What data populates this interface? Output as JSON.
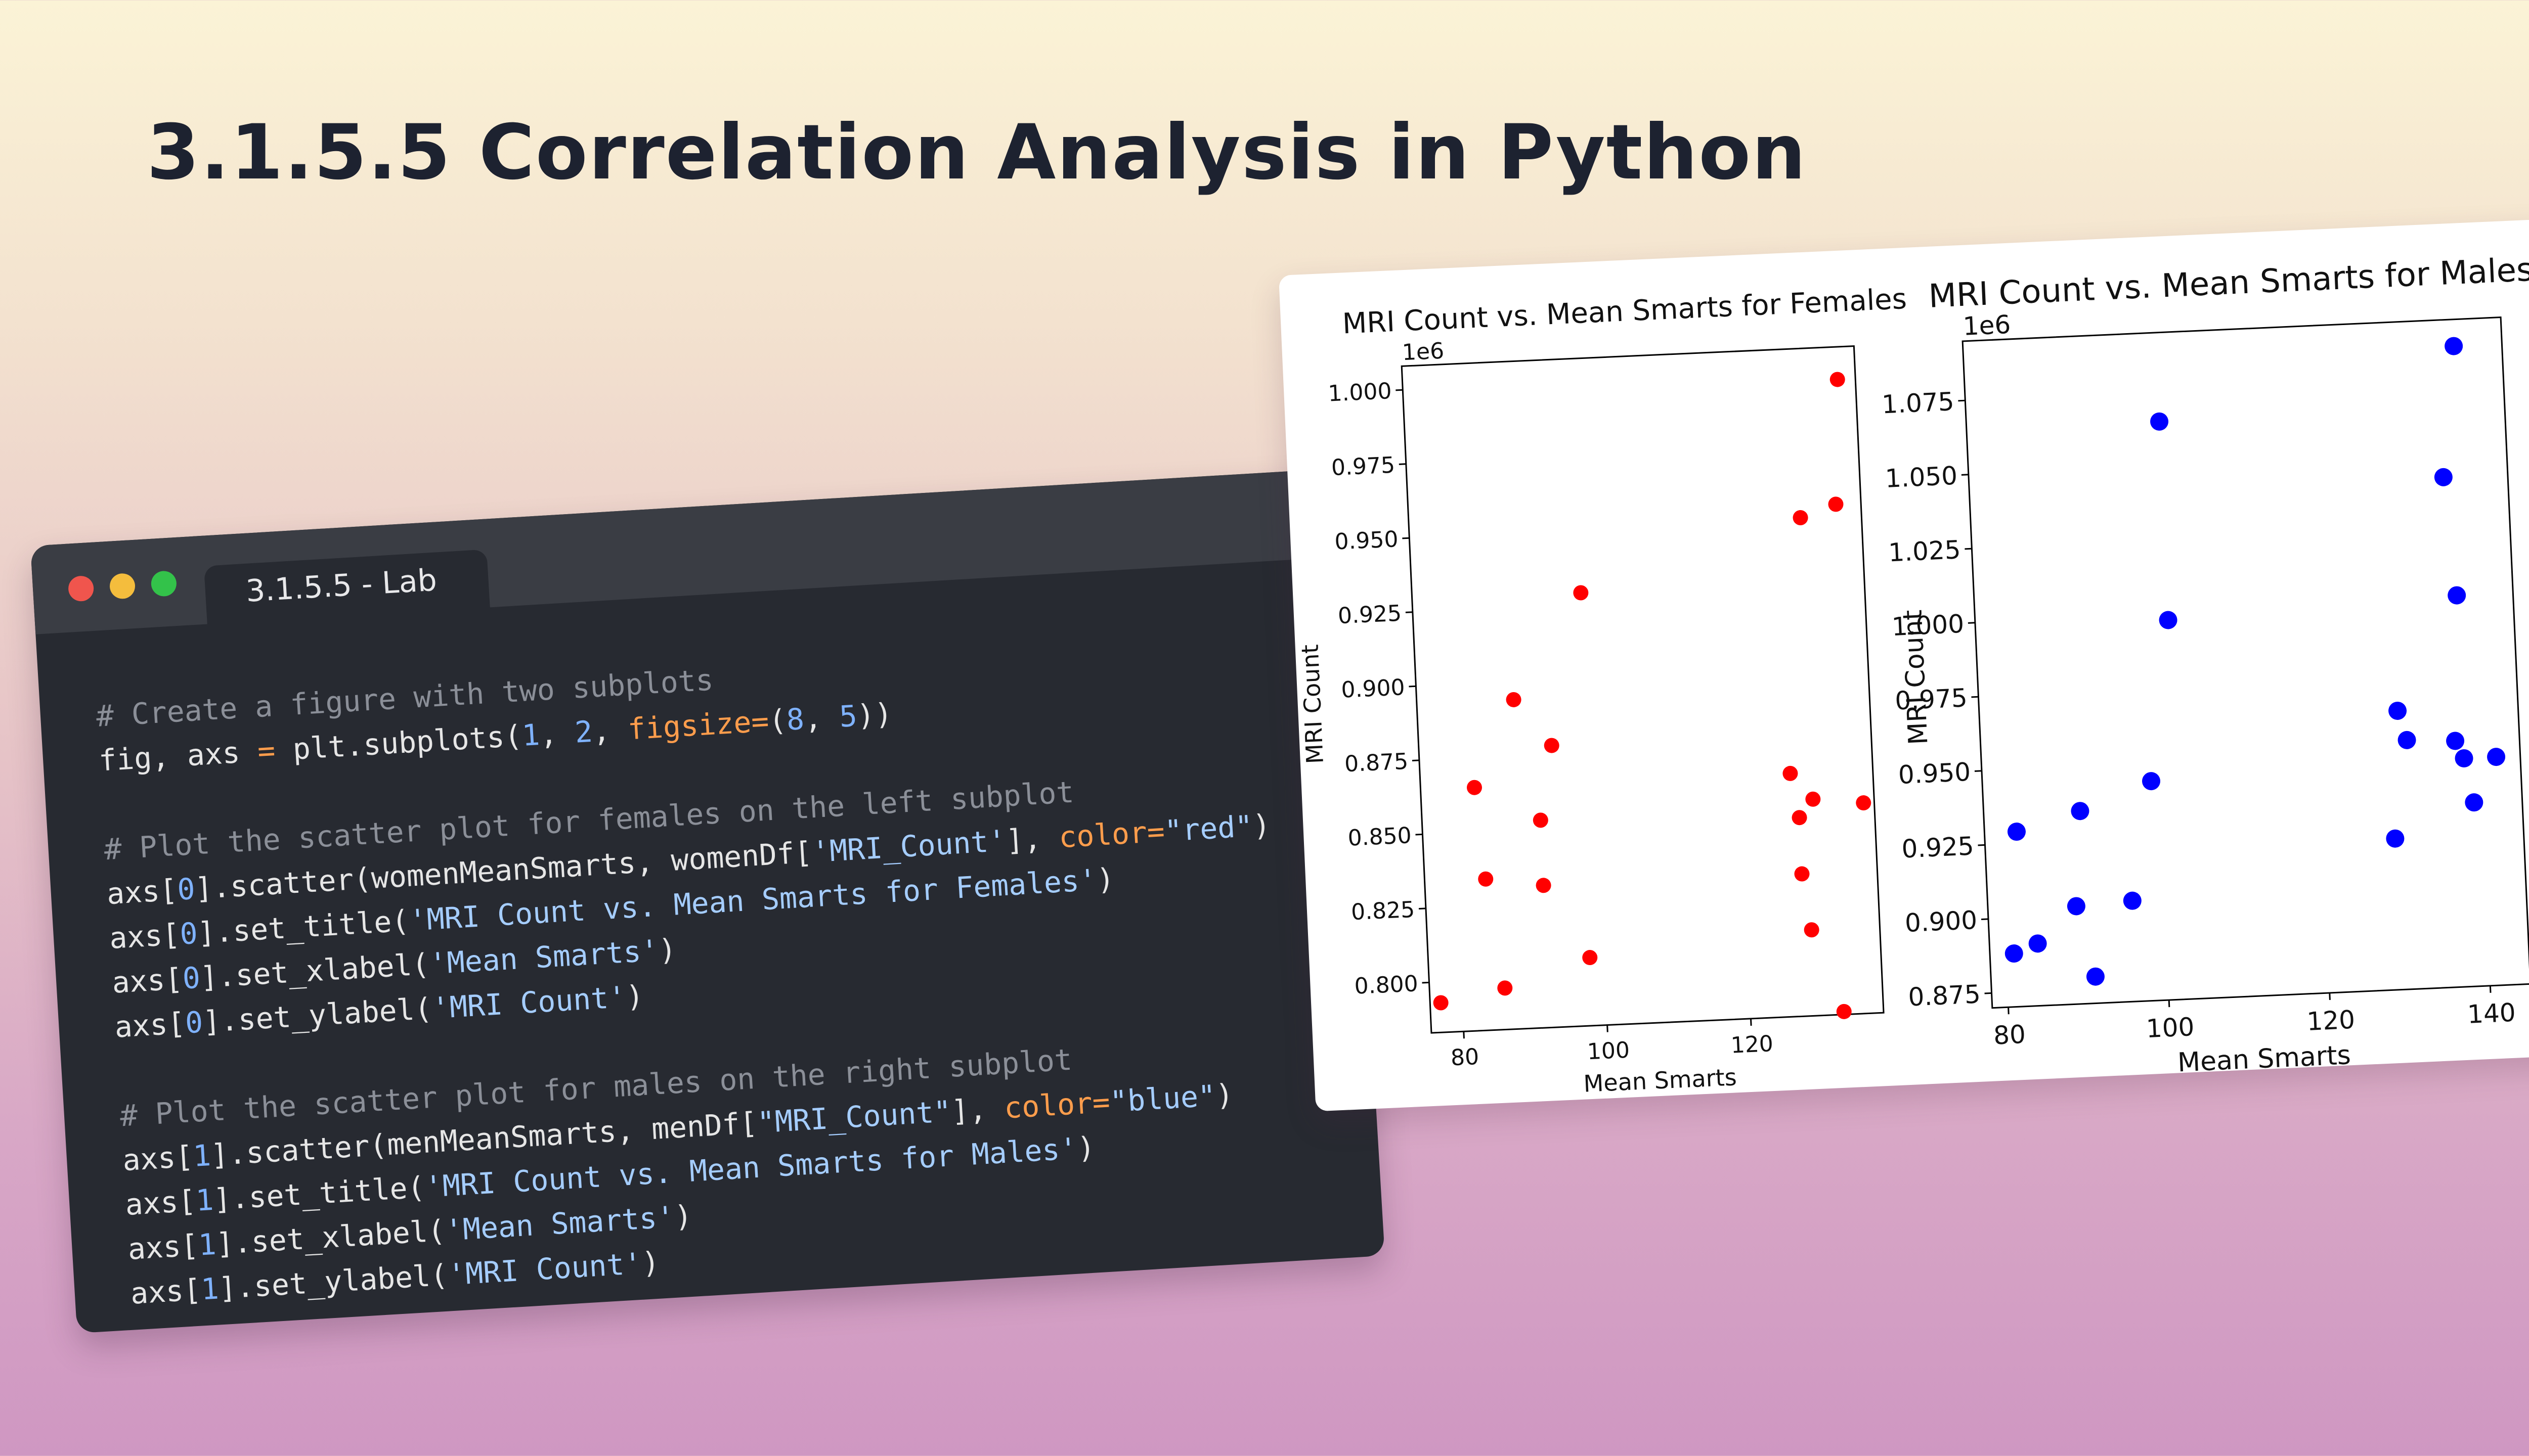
{
  "slide": {
    "title": "3.1.5.5 Correlation Analysis in Python"
  },
  "code_window": {
    "tab_label": "3.1.5.5 - Lab",
    "lines": [
      [
        {
          "t": "# Create a figure with two subplots",
          "c": "c"
        }
      ],
      [
        {
          "t": "fig, axs ",
          "c": "p"
        },
        {
          "t": "=",
          "c": "k"
        },
        {
          "t": " plt.subplots(",
          "c": "p"
        },
        {
          "t": "1",
          "c": "n"
        },
        {
          "t": ", ",
          "c": "p"
        },
        {
          "t": "2",
          "c": "n"
        },
        {
          "t": ", ",
          "c": "p"
        },
        {
          "t": "figsize=",
          "c": "k"
        },
        {
          "t": "(",
          "c": "p"
        },
        {
          "t": "8",
          "c": "n"
        },
        {
          "t": ", ",
          "c": "p"
        },
        {
          "t": "5",
          "c": "n"
        },
        {
          "t": "))",
          "c": "p"
        }
      ],
      [
        {
          "t": "",
          "c": "p"
        }
      ],
      [
        {
          "t": "# Plot the scatter plot for females on the left subplot",
          "c": "c"
        }
      ],
      [
        {
          "t": "axs[",
          "c": "p"
        },
        {
          "t": "0",
          "c": "n"
        },
        {
          "t": "].scatter(womenMeanSmarts, womenDf[",
          "c": "p"
        },
        {
          "t": "'MRI_Count'",
          "c": "s"
        },
        {
          "t": "], ",
          "c": "p"
        },
        {
          "t": "color=",
          "c": "k"
        },
        {
          "t": "\"red\"",
          "c": "s"
        },
        {
          "t": ")",
          "c": "p"
        }
      ],
      [
        {
          "t": "axs[",
          "c": "p"
        },
        {
          "t": "0",
          "c": "n"
        },
        {
          "t": "].set_title(",
          "c": "p"
        },
        {
          "t": "'MRI Count vs. Mean Smarts for Females'",
          "c": "s"
        },
        {
          "t": ")",
          "c": "p"
        }
      ],
      [
        {
          "t": "axs[",
          "c": "p"
        },
        {
          "t": "0",
          "c": "n"
        },
        {
          "t": "].set_xlabel(",
          "c": "p"
        },
        {
          "t": "'Mean Smarts'",
          "c": "s"
        },
        {
          "t": ")",
          "c": "p"
        }
      ],
      [
        {
          "t": "axs[",
          "c": "p"
        },
        {
          "t": "0",
          "c": "n"
        },
        {
          "t": "].set_ylabel(",
          "c": "p"
        },
        {
          "t": "'MRI Count'",
          "c": "s"
        },
        {
          "t": ")",
          "c": "p"
        }
      ],
      [
        {
          "t": "",
          "c": "p"
        }
      ],
      [
        {
          "t": "# Plot the scatter plot for males on the right subplot",
          "c": "c"
        }
      ],
      [
        {
          "t": "axs[",
          "c": "p"
        },
        {
          "t": "1",
          "c": "n"
        },
        {
          "t": "].scatter(menMeanSmarts, menDf[",
          "c": "p"
        },
        {
          "t": "\"MRI_Count\"",
          "c": "s"
        },
        {
          "t": "], ",
          "c": "p"
        },
        {
          "t": "color=",
          "c": "k"
        },
        {
          "t": "\"blue\"",
          "c": "s"
        },
        {
          "t": ")",
          "c": "p"
        }
      ],
      [
        {
          "t": "axs[",
          "c": "p"
        },
        {
          "t": "1",
          "c": "n"
        },
        {
          "t": "].set_title(",
          "c": "p"
        },
        {
          "t": "'MRI Count vs. Mean Smarts for Males'",
          "c": "s"
        },
        {
          "t": ")",
          "c": "p"
        }
      ],
      [
        {
          "t": "axs[",
          "c": "p"
        },
        {
          "t": "1",
          "c": "n"
        },
        {
          "t": "].set_xlabel(",
          "c": "p"
        },
        {
          "t": "'Mean Smarts'",
          "c": "s"
        },
        {
          "t": ")",
          "c": "p"
        }
      ],
      [
        {
          "t": "axs[",
          "c": "p"
        },
        {
          "t": "1",
          "c": "n"
        },
        {
          "t": "].set_ylabel(",
          "c": "p"
        },
        {
          "t": "'MRI Count'",
          "c": "s"
        },
        {
          "t": ")",
          "c": "p"
        }
      ]
    ],
    "colors": {
      "window": "#272a31",
      "titlebar": "#3a3d44",
      "comment": "#8b8f98",
      "string": "#a5cdff",
      "number": "#7fb2ff",
      "keyword": "#ff9d4c"
    }
  },
  "chart_data": [
    {
      "type": "scatter",
      "title": "MRI Count vs. Mean Smarts for Females",
      "xlabel": "Mean Smarts",
      "ylabel": "MRI Count",
      "offset_label": "1e6",
      "color": "#ff0000",
      "xlim": [
        75.5,
        138.5
      ],
      "ylim": [
        0.783,
        1.008
      ],
      "xticks": [
        80,
        100,
        120
      ],
      "xtick_labels": [
        "80",
        "100",
        "120"
      ],
      "yticks": [
        0.8,
        0.825,
        0.85,
        0.875,
        0.9,
        0.925,
        0.95,
        0.975,
        1.0
      ],
      "ytick_labels": [
        "0.800",
        "0.825",
        "0.850",
        "0.875",
        "0.900",
        "0.925",
        "0.950",
        "0.975",
        "1.000"
      ],
      "grid": false,
      "points": [
        [
          77,
          0.793
        ],
        [
          83,
          0.865
        ],
        [
          84,
          0.834
        ],
        [
          86,
          0.797
        ],
        [
          89,
          0.894
        ],
        [
          92,
          0.853
        ],
        [
          92,
          0.831
        ],
        [
          94,
          0.878
        ],
        [
          98,
          0.806
        ],
        [
          99,
          0.929
        ],
        [
          127,
          0.865
        ],
        [
          128,
          0.85
        ],
        [
          128,
          0.831
        ],
        [
          129,
          0.812
        ],
        [
          130,
          0.951
        ],
        [
          130,
          0.856
        ],
        [
          133,
          0.784
        ],
        [
          135,
          0.955
        ],
        [
          136,
          0.997
        ],
        [
          137,
          0.854
        ]
      ]
    },
    {
      "type": "scatter",
      "title": "MRI Count vs. Mean Smarts for Males",
      "xlabel": "Mean Smarts",
      "ylabel": "MRI Count",
      "offset_label": "1e6",
      "color": "#0000ff",
      "xlim": [
        78,
        145
      ],
      "ylim": [
        0.87,
        1.095
      ],
      "xticks": [
        80,
        100,
        120,
        140
      ],
      "xtick_labels": [
        "80",
        "100",
        "120",
        "140"
      ],
      "yticks": [
        0.875,
        0.9,
        0.925,
        0.95,
        0.975,
        1.0,
        1.025,
        1.05,
        1.075
      ],
      "ytick_labels": [
        "0.875",
        "0.900",
        "0.925",
        "0.950",
        "0.975",
        "1.000",
        "1.025",
        "1.050",
        "1.075"
      ],
      "grid": false,
      "points": [
        [
          81,
          0.888
        ],
        [
          82,
          0.929
        ],
        [
          84,
          0.891
        ],
        [
          89,
          0.903
        ],
        [
          90,
          0.935
        ],
        [
          91,
          0.879
        ],
        [
          96,
          0.904
        ],
        [
          99,
          0.944
        ],
        [
          102,
          1.065
        ],
        [
          102,
          0.998
        ],
        [
          129,
          0.921
        ],
        [
          130,
          0.964
        ],
        [
          131,
          0.954
        ],
        [
          137,
          1.042
        ],
        [
          137,
          0.953
        ],
        [
          138,
          1.002
        ],
        [
          138,
          0.947
        ],
        [
          139,
          0.932
        ],
        [
          139,
          1.086
        ],
        [
          142,
          0.947
        ]
      ]
    }
  ]
}
